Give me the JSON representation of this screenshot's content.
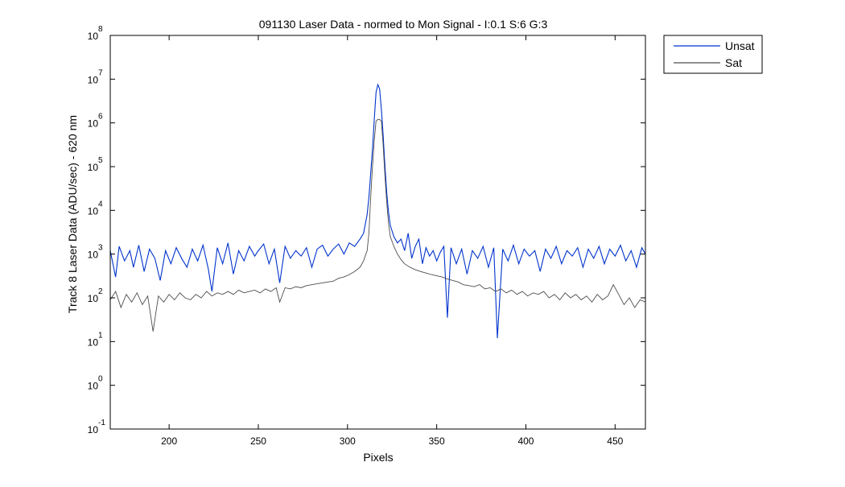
{
  "chart_data": {
    "type": "line",
    "title": "091130 Laser Data - normed to Mon Signal -   I:0.1  S:6  G:3",
    "xlabel": "Pixels",
    "ylabel": "Track 8 Laser Data (ADU/sec) - 620 nm",
    "xlim": [
      167,
      467
    ],
    "ylim": [
      0.1,
      100000000
    ],
    "yscale": "log",
    "grid": false,
    "legend_position": "outside-top-right",
    "x_ticks": [
      200,
      250,
      300,
      350,
      400,
      450
    ],
    "x_tick_labels": [
      "200",
      "250",
      "300",
      "350",
      "400",
      "450"
    ],
    "y_ticks": [
      {
        "value": 0.1,
        "base": "10",
        "exp": "-1"
      },
      {
        "value": 1,
        "base": "10",
        "exp": "0"
      },
      {
        "value": 10,
        "base": "10",
        "exp": "1"
      },
      {
        "value": 100,
        "base": "10",
        "exp": "2"
      },
      {
        "value": 1000,
        "base": "10",
        "exp": "3"
      },
      {
        "value": 10000,
        "base": "10",
        "exp": "4"
      },
      {
        "value": 100000,
        "base": "10",
        "exp": "5"
      },
      {
        "value": 1000000,
        "base": "10",
        "exp": "6"
      },
      {
        "value": 10000000,
        "base": "10",
        "exp": "7"
      },
      {
        "value": 100000000,
        "base": "10",
        "exp": "8"
      }
    ],
    "series": [
      {
        "name": "Unsat",
        "color": "#0033cc",
        "points": [
          [
            167,
            1200
          ],
          [
            170,
            300
          ],
          [
            172,
            1500
          ],
          [
            175,
            700
          ],
          [
            178,
            1200
          ],
          [
            180,
            500
          ],
          [
            183,
            1600
          ],
          [
            186,
            400
          ],
          [
            189,
            1300
          ],
          [
            192,
            800
          ],
          [
            195,
            250
          ],
          [
            198,
            1200
          ],
          [
            201,
            600
          ],
          [
            204,
            1400
          ],
          [
            207,
            800
          ],
          [
            210,
            500
          ],
          [
            213,
            1300
          ],
          [
            216,
            700
          ],
          [
            219,
            1600
          ],
          [
            222,
            450
          ],
          [
            224,
            140
          ],
          [
            227,
            1400
          ],
          [
            230,
            600
          ],
          [
            233,
            1800
          ],
          [
            236,
            350
          ],
          [
            239,
            1200
          ],
          [
            242,
            700
          ],
          [
            245,
            1500
          ],
          [
            248,
            900
          ],
          [
            250,
            1200
          ],
          [
            253,
            1700
          ],
          [
            256,
            600
          ],
          [
            259,
            1300
          ],
          [
            262,
            220
          ],
          [
            265,
            1500
          ],
          [
            268,
            800
          ],
          [
            271,
            1200
          ],
          [
            274,
            900
          ],
          [
            277,
            1400
          ],
          [
            280,
            500
          ],
          [
            283,
            1300
          ],
          [
            286,
            1600
          ],
          [
            289,
            900
          ],
          [
            292,
            1300
          ],
          [
            295,
            1700
          ],
          [
            298,
            1000
          ],
          [
            301,
            1800
          ],
          [
            304,
            1500
          ],
          [
            307,
            2200
          ],
          [
            309,
            3000
          ],
          [
            311,
            8000
          ],
          [
            312,
            20000
          ],
          [
            313,
            70000
          ],
          [
            314,
            250000
          ],
          [
            315,
            1200000
          ],
          [
            316,
            5000000
          ],
          [
            317,
            7500000
          ],
          [
            318,
            6000000
          ],
          [
            319,
            2000000
          ],
          [
            320,
            500000
          ],
          [
            321,
            100000
          ],
          [
            322,
            25000
          ],
          [
            323,
            9000
          ],
          [
            324,
            4500
          ],
          [
            326,
            2500
          ],
          [
            328,
            1800
          ],
          [
            330,
            2200
          ],
          [
            332,
            1200
          ],
          [
            334,
            3000
          ],
          [
            336,
            800
          ],
          [
            338,
            1500
          ],
          [
            340,
            2200
          ],
          [
            342,
            600
          ],
          [
            344,
            1400
          ],
          [
            346,
            900
          ],
          [
            348,
            1200
          ],
          [
            350,
            700
          ],
          [
            352,
            1100
          ],
          [
            354,
            1500
          ],
          [
            356,
            35
          ],
          [
            358,
            1400
          ],
          [
            361,
            600
          ],
          [
            364,
            1300
          ],
          [
            367,
            350
          ],
          [
            370,
            1200
          ],
          [
            373,
            800
          ],
          [
            376,
            1500
          ],
          [
            379,
            500
          ],
          [
            382,
            1400
          ],
          [
            384,
            12
          ],
          [
            387,
            1300
          ],
          [
            390,
            700
          ],
          [
            393,
            1600
          ],
          [
            396,
            600
          ],
          [
            399,
            1300
          ],
          [
            402,
            900
          ],
          [
            405,
            1200
          ],
          [
            408,
            400
          ],
          [
            411,
            1300
          ],
          [
            414,
            800
          ],
          [
            417,
            1500
          ],
          [
            420,
            600
          ],
          [
            423,
            1200
          ],
          [
            426,
            900
          ],
          [
            429,
            1400
          ],
          [
            432,
            500
          ],
          [
            435,
            1300
          ],
          [
            438,
            800
          ],
          [
            441,
            1500
          ],
          [
            444,
            600
          ],
          [
            447,
            1300
          ],
          [
            450,
            900
          ],
          [
            453,
            1600
          ],
          [
            456,
            700
          ],
          [
            459,
            1200
          ],
          [
            462,
            500
          ],
          [
            465,
            1400
          ],
          [
            467,
            1000
          ]
        ]
      },
      {
        "name": "Sat",
        "color": "#4d4d4d",
        "points": [
          [
            167,
            90
          ],
          [
            170,
            140
          ],
          [
            173,
            60
          ],
          [
            176,
            120
          ],
          [
            179,
            80
          ],
          [
            182,
            130
          ],
          [
            185,
            70
          ],
          [
            188,
            110
          ],
          [
            191,
            17
          ],
          [
            194,
            110
          ],
          [
            197,
            80
          ],
          [
            200,
            120
          ],
          [
            203,
            90
          ],
          [
            206,
            130
          ],
          [
            209,
            100
          ],
          [
            212,
            90
          ],
          [
            215,
            120
          ],
          [
            218,
            100
          ],
          [
            221,
            140
          ],
          [
            224,
            110
          ],
          [
            227,
            130
          ],
          [
            230,
            120
          ],
          [
            233,
            140
          ],
          [
            236,
            120
          ],
          [
            239,
            150
          ],
          [
            242,
            130
          ],
          [
            245,
            140
          ],
          [
            248,
            150
          ],
          [
            251,
            130
          ],
          [
            254,
            160
          ],
          [
            257,
            140
          ],
          [
            260,
            170
          ],
          [
            262,
            80
          ],
          [
            265,
            170
          ],
          [
            268,
            160
          ],
          [
            271,
            180
          ],
          [
            274,
            170
          ],
          [
            277,
            190
          ],
          [
            280,
            200
          ],
          [
            283,
            210
          ],
          [
            286,
            220
          ],
          [
            289,
            230
          ],
          [
            292,
            240
          ],
          [
            295,
            280
          ],
          [
            298,
            300
          ],
          [
            301,
            340
          ],
          [
            304,
            400
          ],
          [
            307,
            500
          ],
          [
            309,
            700
          ],
          [
            311,
            1200
          ],
          [
            312,
            3000
          ],
          [
            313,
            20000
          ],
          [
            314,
            100000
          ],
          [
            315,
            400000
          ],
          [
            316,
            1100000
          ],
          [
            317,
            1200000
          ],
          [
            318,
            1200000
          ],
          [
            319,
            1100000
          ],
          [
            320,
            300000
          ],
          [
            321,
            60000
          ],
          [
            322,
            15000
          ],
          [
            323,
            5000
          ],
          [
            324,
            2500
          ],
          [
            326,
            1500
          ],
          [
            328,
            1000
          ],
          [
            330,
            750
          ],
          [
            332,
            600
          ],
          [
            335,
            500
          ],
          [
            338,
            440
          ],
          [
            341,
            400
          ],
          [
            344,
            370
          ],
          [
            347,
            340
          ],
          [
            350,
            320
          ],
          [
            353,
            300
          ],
          [
            356,
            270
          ],
          [
            359,
            250
          ],
          [
            362,
            230
          ],
          [
            365,
            200
          ],
          [
            368,
            190
          ],
          [
            371,
            180
          ],
          [
            374,
            200
          ],
          [
            377,
            160
          ],
          [
            380,
            170
          ],
          [
            383,
            140
          ],
          [
            386,
            160
          ],
          [
            389,
            130
          ],
          [
            392,
            150
          ],
          [
            395,
            120
          ],
          [
            398,
            140
          ],
          [
            401,
            110
          ],
          [
            404,
            130
          ],
          [
            407,
            120
          ],
          [
            410,
            140
          ],
          [
            413,
            100
          ],
          [
            416,
            120
          ],
          [
            419,
            90
          ],
          [
            422,
            130
          ],
          [
            425,
            100
          ],
          [
            428,
            120
          ],
          [
            431,
            90
          ],
          [
            434,
            110
          ],
          [
            437,
            80
          ],
          [
            440,
            120
          ],
          [
            443,
            90
          ],
          [
            446,
            110
          ],
          [
            449,
            200
          ],
          [
            452,
            120
          ],
          [
            455,
            70
          ],
          [
            458,
            100
          ],
          [
            461,
            60
          ],
          [
            464,
            90
          ],
          [
            467,
            80
          ]
        ]
      }
    ]
  }
}
